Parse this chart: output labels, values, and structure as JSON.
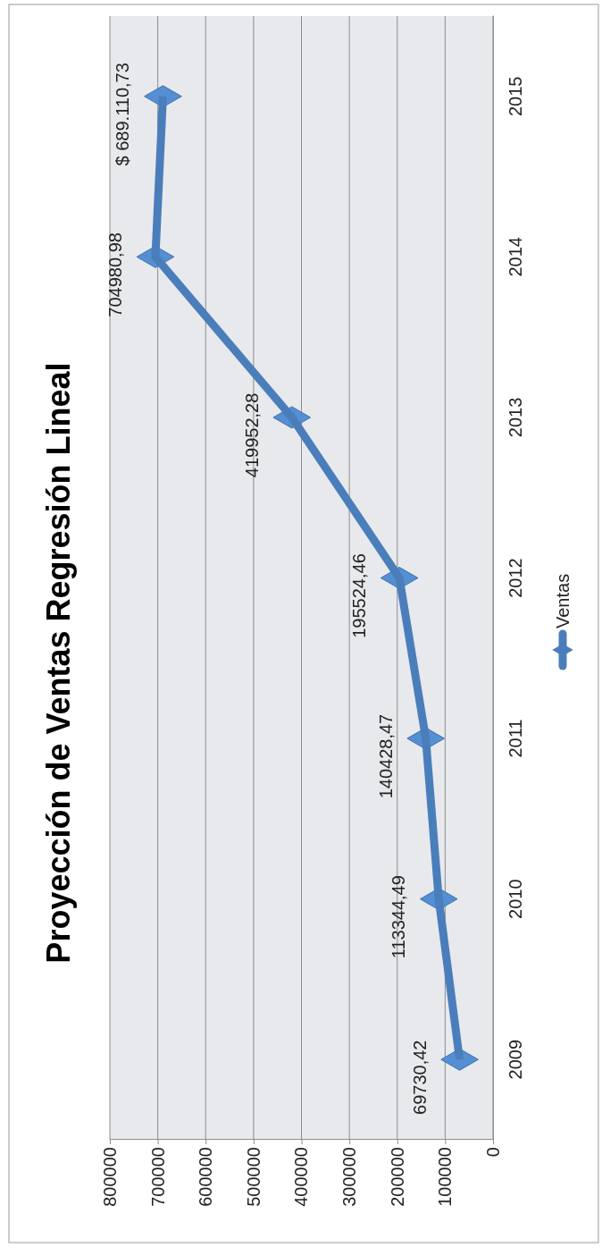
{
  "chart_data": {
    "type": "line",
    "title": "Proyección de Ventas Regresión Lineal",
    "orientation": "horizontal",
    "categories": [
      "2015",
      "2014",
      "2013",
      "2012",
      "2011",
      "2010",
      "2009"
    ],
    "series": [
      {
        "name": "Ventas",
        "color": "#4a7ebb",
        "values": [
          689110.73,
          704980.98,
          419952.28,
          195524.46,
          140428.47,
          113344.49,
          69730.42
        ],
        "value_labels": [
          "$ 689.110,73",
          "704980,98",
          "419952,28",
          "195524,46",
          "140428,47",
          "113344,49",
          "69730,42"
        ]
      }
    ],
    "xlim": [
      800000,
      0
    ],
    "xticks": [
      800000,
      700000,
      600000,
      500000,
      400000,
      300000,
      200000,
      100000,
      0
    ],
    "grid": "x",
    "legend": "right",
    "marker": "diamond",
    "line_style": "solid"
  }
}
